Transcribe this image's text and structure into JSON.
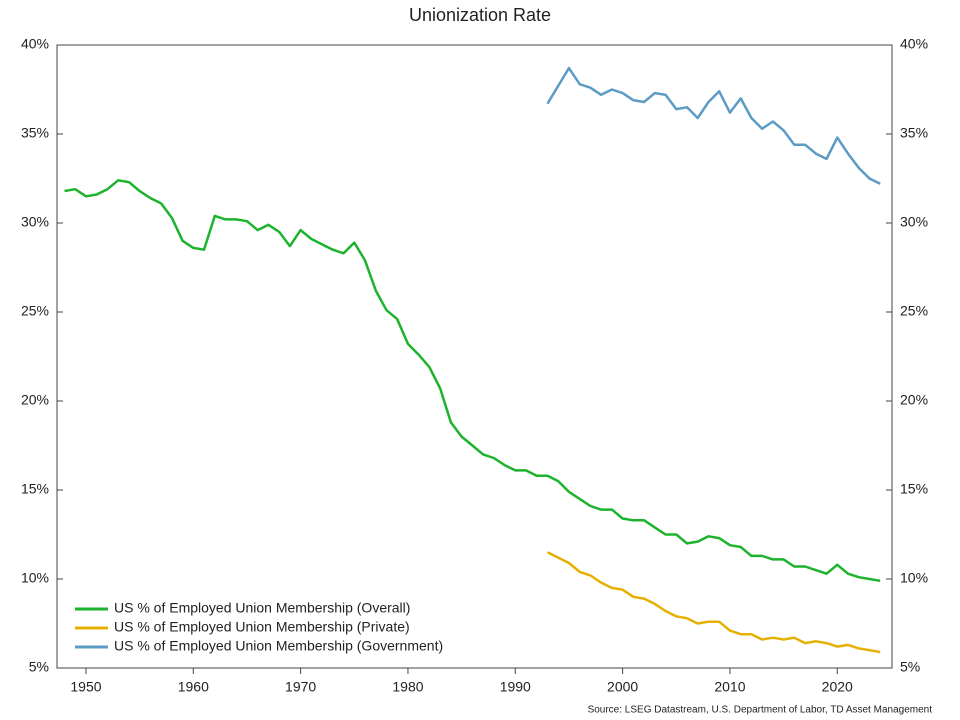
{
  "chart_data": {
    "type": "line",
    "title": "Unionization Rate",
    "source": "Source: LSEG Datastream, U.S. Department of Labor, TD Asset Management",
    "x_start": 1948,
    "xlim": [
      1947.3,
      2025.1
    ],
    "xticks": [
      1950,
      1960,
      1970,
      1980,
      1990,
      2000,
      2010,
      2020
    ],
    "ylim": [
      5,
      40
    ],
    "yticks": [
      {
        "value": 5,
        "label": "5%"
      },
      {
        "value": 10,
        "label": "10%"
      },
      {
        "value": 15,
        "label": "15%"
      },
      {
        "value": 20,
        "label": "20%"
      },
      {
        "value": 25,
        "label": "25%"
      },
      {
        "value": 30,
        "label": "30%"
      },
      {
        "value": 35,
        "label": "35%"
      },
      {
        "value": 40,
        "label": "40%"
      }
    ],
    "y2lim": [
      5,
      40
    ],
    "y2ticks": [
      {
        "value": 5,
        "label": "5%"
      },
      {
        "value": 10,
        "label": "10%"
      },
      {
        "value": 15,
        "label": "15%"
      },
      {
        "value": 20,
        "label": "20%"
      },
      {
        "value": 25,
        "label": "25%"
      },
      {
        "value": 30,
        "label": "30%"
      },
      {
        "value": 35,
        "label": "35%"
      },
      {
        "value": 40,
        "label": "40%"
      }
    ],
    "legend": "lower-left",
    "series": [
      {
        "name": "US % of Employed Union Membership (Overall)",
        "color": "#1db32d",
        "start": 1948,
        "values": [
          31.8,
          31.9,
          31.5,
          31.6,
          31.9,
          32.4,
          32.3,
          31.8,
          31.4,
          31.1,
          30.3,
          29.0,
          28.6,
          28.5,
          30.4,
          30.2,
          30.2,
          30.1,
          29.6,
          29.9,
          29.5,
          28.7,
          29.6,
          29.1,
          28.8,
          28.5,
          28.3,
          28.9,
          27.9,
          26.2,
          25.1,
          24.6,
          23.2,
          22.6,
          21.9,
          20.7,
          18.8,
          18.0,
          17.5,
          17.0,
          16.8,
          16.4,
          16.1,
          16.1,
          15.8,
          15.8,
          15.5,
          14.9,
          14.5,
          14.1,
          13.9,
          13.9,
          13.4,
          13.3,
          13.3,
          12.9,
          12.5,
          12.5,
          12.0,
          12.1,
          12.4,
          12.3,
          11.9,
          11.8,
          11.3,
          11.3,
          11.1,
          11.1,
          10.7,
          10.7,
          10.5,
          10.3,
          10.8,
          10.3,
          10.1,
          10.0,
          9.9
        ]
      },
      {
        "name": "US % of Employed Union Membership (Private)",
        "color": "#e6b000",
        "start": 1993,
        "values": [
          11.5,
          11.2,
          10.9,
          10.4,
          10.2,
          9.8,
          9.5,
          9.4,
          9.0,
          8.9,
          8.6,
          8.2,
          7.9,
          7.8,
          7.5,
          7.6,
          7.6,
          7.1,
          6.9,
          6.9,
          6.6,
          6.7,
          6.6,
          6.7,
          6.4,
          6.5,
          6.4,
          6.2,
          6.3,
          6.1,
          6.0,
          5.9
        ]
      },
      {
        "name": "US % of Employed Union Membership (Government)",
        "color": "#5b9bc4",
        "start": 1993,
        "values": [
          36.7,
          37.7,
          38.7,
          37.8,
          37.6,
          37.2,
          37.5,
          37.3,
          36.9,
          36.8,
          37.3,
          37.2,
          36.4,
          36.5,
          35.9,
          36.8,
          37.4,
          36.2,
          37.0,
          35.9,
          35.3,
          35.7,
          35.2,
          34.4,
          34.4,
          33.9,
          33.6,
          34.8,
          33.9,
          33.1,
          32.5,
          32.2
        ]
      }
    ]
  }
}
